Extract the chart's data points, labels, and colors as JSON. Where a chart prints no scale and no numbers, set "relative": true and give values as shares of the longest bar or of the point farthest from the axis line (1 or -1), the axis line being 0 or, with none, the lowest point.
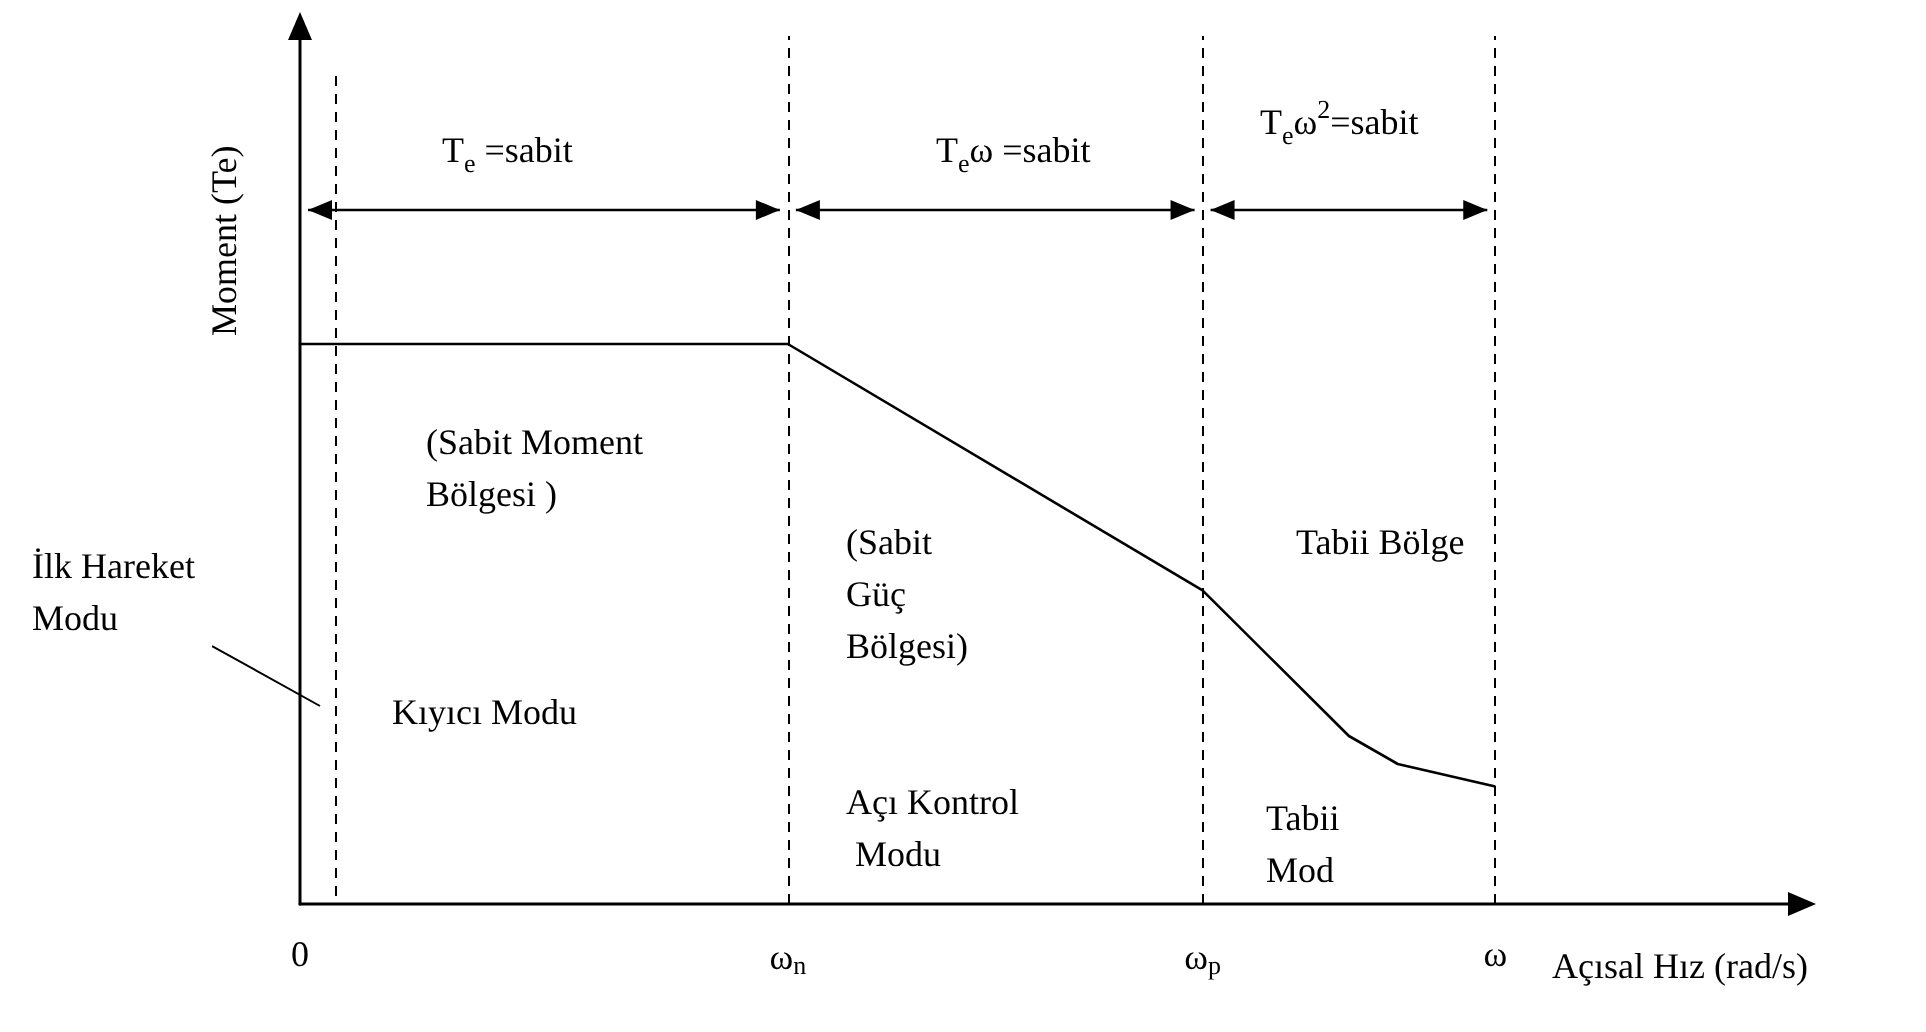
{
  "chart_data": {
    "type": "line",
    "relative": true,
    "xlabel": "Açısal Hız (rad/s)",
    "ylabel": "Moment (Te)",
    "categories": [
      "0",
      null,
      null,
      null,
      null,
      null,
      null,
      null,
      null,
      null,
      null,
      null,
      null,
      null,
      null,
      null,
      null,
      null,
      null,
      null,
      "ω$_{n}$",
      null,
      null,
      null,
      null,
      null,
      null,
      null,
      null,
      null,
      null,
      null,
      null,
      null,
      null,
      null,
      null,
      "ω$_{p}$",
      null,
      null,
      null,
      null,
      null,
      null,
      null,
      null,
      null,
      null,
      null,
      "ω",
      null,
      null,
      null,
      null,
      null,
      null,
      null,
      null,
      null,
      null,
      null,
      null
    ],
    "series": [
      {
        "color": "#000000",
        "values": [
          1,
          null,
          null,
          null,
          null,
          null,
          null,
          null,
          null,
          null,
          null,
          null,
          null,
          null,
          null,
          null,
          null,
          null,
          null,
          null,
          1,
          null,
          null,
          null,
          null,
          null,
          null,
          null,
          null,
          null,
          null,
          null,
          null,
          null,
          null,
          null,
          null,
          0.56,
          null,
          null,
          0.43,
          null,
          null,
          0.3,
          null,
          0.25,
          null,
          null,
          null,
          0.21,
          null,
          null,
          null,
          null,
          null,
          null,
          null,
          null,
          null,
          null,
          null,
          null
        ]
      }
    ],
    "ref_lines": [
      {
        "axis": "x",
        "value": "ω$_{n}$",
        "color": "#000000",
        "line_style": "dashed"
      },
      {
        "axis": "x",
        "value": "ω$_{p}$",
        "color": "#000000",
        "line_style": "dashed"
      },
      {
        "axis": "x",
        "value": "ω",
        "color": "#000000",
        "line_style": "dashed"
      }
    ],
    "annotations": [
      "T$_{e}$ =sabit",
      "T$_{e}$ω =sabit",
      "T$_{e}$ω$^{2}$=sabit",
      "(Sabit Moment Bölgesi )",
      "(Sabit Güç Bölgesi)",
      "Tabii Bölge",
      "İlk Hareket Modu",
      "Kıyıcı Modu",
      "Açı Kontrol Modu",
      "Tabii Mod"
    ],
    "grid": false,
    "marker": "none",
    "line_style": "solid"
  }
}
